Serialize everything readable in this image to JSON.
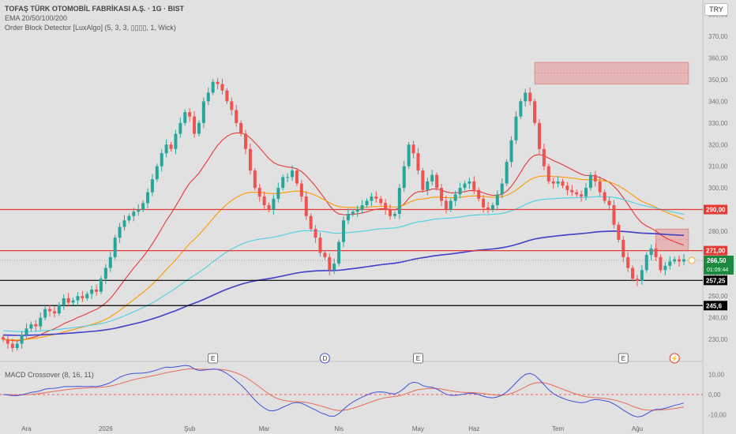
{
  "header": {
    "title": "TOFAŞ TÜRK OTOMOBİL FABRİKASI A.Ş. · 1G · BIST",
    "indicator1": "EMA 20/50/100/200",
    "indicator2": "Order Block Detector [LuxAlgo] (5, 3, 3, ▯▯▯▯, 1, Wick)",
    "macd_label": "MACD Crossover (8, 16, 11)",
    "currency": "TRY"
  },
  "colors": {
    "bull": "#26a69a",
    "bear": "#ef5350",
    "ema20": "#e53935",
    "ema50": "#ff9800",
    "ema100": "#4dd0e1",
    "ema200": "#3f3fc8",
    "macd": "#3f51d8",
    "signal": "#e86a5a",
    "hline_red": "#e53935",
    "hline_black": "#000000",
    "ob_fill": "#e8a3a3"
  },
  "chart_data": {
    "type": "candlestick",
    "y_range": [
      222,
      385
    ],
    "y_ticks": [
      230,
      240,
      250,
      260,
      270,
      280,
      290,
      300,
      310,
      320,
      330,
      340,
      350,
      360,
      370,
      380
    ],
    "y_tick_labels": [
      "230,00",
      "240,00",
      "250,00",
      "260,00",
      "270,00",
      "280,00",
      "290,00",
      "300,00",
      "310,00",
      "320,00",
      "330,00",
      "340,00",
      "350,00",
      "360,00",
      "370,00",
      "380,00"
    ],
    "x_labels": [
      {
        "label": "Ara",
        "i": 5
      },
      {
        "label": "2026",
        "i": 22
      },
      {
        "label": "Şub",
        "i": 40
      },
      {
        "label": "Mar",
        "i": 56
      },
      {
        "label": "Nis",
        "i": 72
      },
      {
        "label": "May",
        "i": 89
      },
      {
        "label": "Haz",
        "i": 101
      },
      {
        "label": "Tem",
        "i": 119
      },
      {
        "label": "Ağu",
        "i": 136
      }
    ],
    "closes": [
      230,
      228,
      226,
      228,
      232,
      235,
      237,
      236,
      240,
      244,
      243,
      242,
      246,
      249,
      247,
      248,
      250,
      249,
      251,
      253,
      252,
      258,
      263,
      268,
      277,
      282,
      285,
      287,
      289,
      290,
      293,
      298,
      304,
      310,
      316,
      320,
      318,
      325,
      330,
      335,
      333,
      325,
      330,
      340,
      344,
      349,
      348,
      345,
      340,
      336,
      330,
      325,
      318,
      308,
      300,
      296,
      292,
      290,
      295,
      300,
      305,
      305,
      308,
      302,
      296,
      287,
      281,
      277,
      270,
      268,
      262,
      265,
      275,
      285,
      288,
      289,
      290,
      292,
      294,
      296,
      295,
      293,
      290,
      287,
      288,
      300,
      310,
      320,
      316,
      308,
      299,
      303,
      306,
      300,
      294,
      290,
      294,
      297,
      300,
      302,
      303,
      299,
      295,
      291,
      290,
      292,
      297,
      302,
      312,
      322,
      333,
      340,
      344,
      340,
      330,
      318,
      310,
      303,
      302,
      303,
      301,
      299,
      298,
      297,
      296,
      300,
      306,
      303,
      298,
      294,
      292,
      283,
      276,
      268,
      263,
      258,
      257,
      262,
      269,
      272,
      268,
      262,
      264,
      266,
      267,
      266,
      267
    ],
    "hlines": [
      {
        "value": 290,
        "label": "290,00",
        "color": "red"
      },
      {
        "value": 271,
        "label": "271,00",
        "color": "red"
      },
      {
        "value": 257.25,
        "label": "257,25",
        "color": "black"
      },
      {
        "value": 245.6,
        "label": "245,6",
        "color": "black"
      }
    ],
    "current_price": {
      "label": "266,50",
      "countdown": "01:09:44",
      "value": 266.5
    },
    "order_blocks": [
      {
        "i_start": 114,
        "i_end": 147,
        "top": 358,
        "bottom": 348
      },
      {
        "i_start": 140,
        "i_end": 147,
        "top": 281,
        "bottom": 271
      }
    ],
    "event_markers": [
      {
        "i": 45,
        "letter": "E"
      },
      {
        "i": 69,
        "letter": "D"
      },
      {
        "i": 89,
        "letter": "E"
      },
      {
        "i": 133,
        "letter": "E"
      },
      {
        "i": 144,
        "letter": "⚡"
      }
    ],
    "macd_range": [
      -15,
      15
    ],
    "macd_ticks": [
      10,
      0,
      -10
    ],
    "macd_tick_labels": [
      "10,00",
      "0,00",
      "-10,00"
    ]
  }
}
